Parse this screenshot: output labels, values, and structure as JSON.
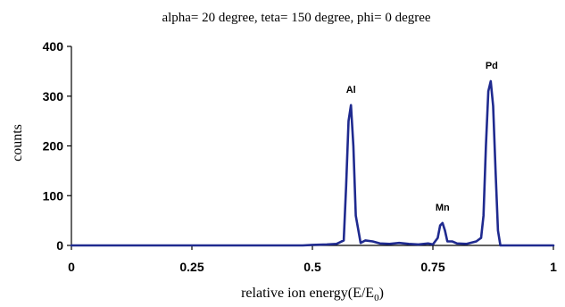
{
  "chart_data": {
    "type": "line",
    "title": "alpha= 20 degree, teta= 150 degree, phi= 0 degree",
    "xlabel": "relative ion energy(E/E",
    "xlabel_subscript": "0",
    "xlabel_suffix": ")",
    "ylabel": "counts",
    "xlim": [
      0,
      1
    ],
    "ylim": [
      0,
      400
    ],
    "x_ticks": [
      0,
      0.25,
      0.5,
      0.75,
      1
    ],
    "x_tick_labels": [
      "0",
      "0.25",
      "0.5",
      "0.75",
      "1"
    ],
    "y_ticks": [
      0,
      100,
      200,
      300,
      400
    ],
    "y_tick_labels": [
      "0",
      "100",
      "200",
      "300",
      "400"
    ],
    "grid": false,
    "line_color": "#1f2a8f",
    "series": [
      {
        "x": [
          0,
          0.1,
          0.2,
          0.3,
          0.4,
          0.48,
          0.5,
          0.53,
          0.55,
          0.565,
          0.57,
          0.575,
          0.58,
          0.585,
          0.59,
          0.6,
          0.61,
          0.625,
          0.64,
          0.66,
          0.68,
          0.7,
          0.72,
          0.74,
          0.75,
          0.76,
          0.765,
          0.77,
          0.775,
          0.78,
          0.79,
          0.8,
          0.82,
          0.84,
          0.85,
          0.855,
          0.86,
          0.865,
          0.87,
          0.875,
          0.88,
          0.885,
          0.89,
          0.9,
          0.95,
          1.0
        ],
        "y": [
          0,
          0,
          0,
          0,
          0,
          0,
          1,
          2,
          3,
          10,
          120,
          250,
          282,
          200,
          60,
          5,
          10,
          8,
          4,
          3,
          5,
          3,
          2,
          4,
          2,
          15,
          40,
          45,
          30,
          8,
          8,
          4,
          3,
          8,
          15,
          60,
          200,
          310,
          330,
          280,
          150,
          30,
          0,
          0,
          0,
          0
        ]
      }
    ],
    "annotations": [
      {
        "text": "Al",
        "x": 0.58,
        "y": 282
      },
      {
        "text": "Mn",
        "x": 0.77,
        "y": 45
      },
      {
        "text": "Pd",
        "x": 0.872,
        "y": 330
      }
    ]
  }
}
